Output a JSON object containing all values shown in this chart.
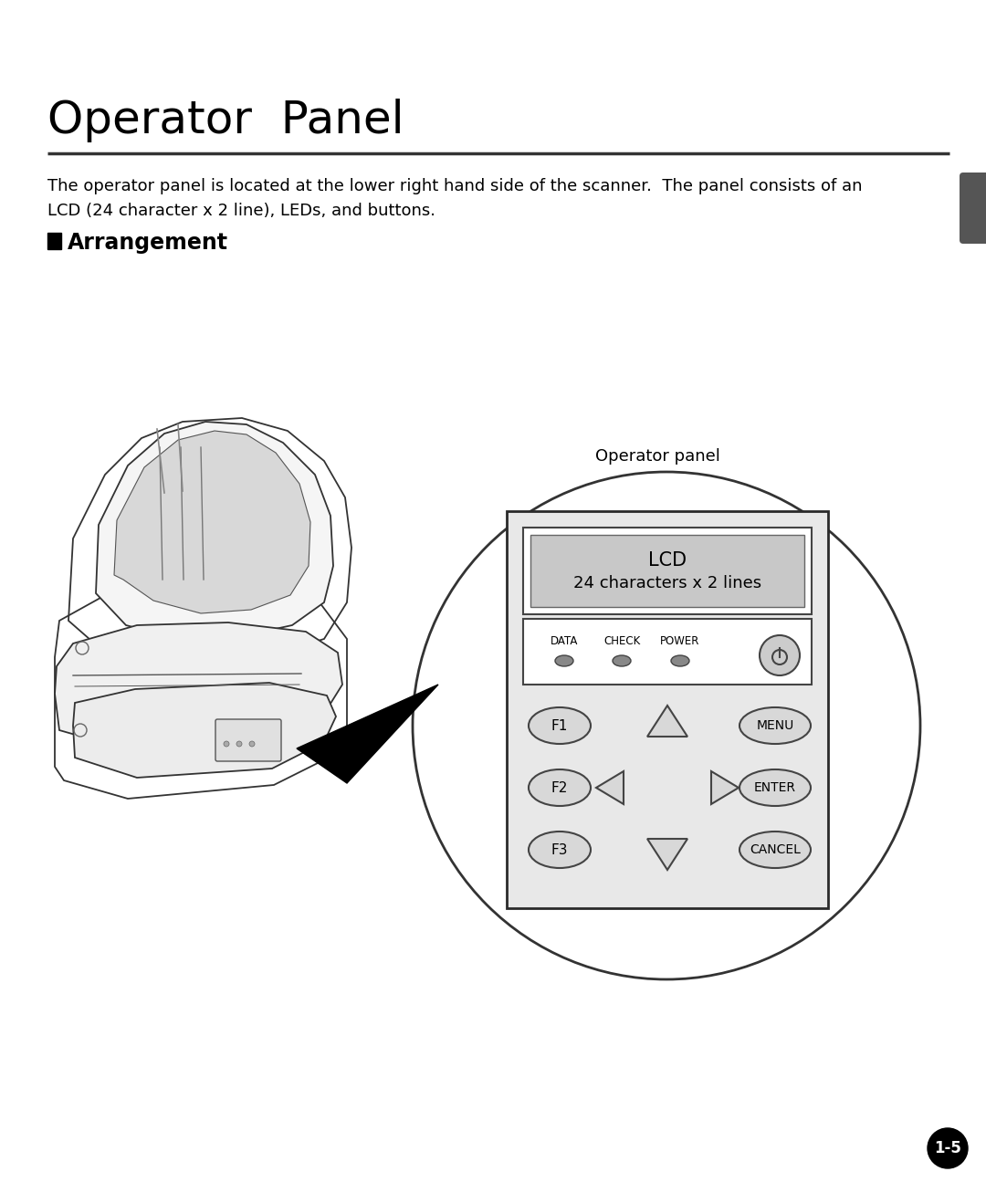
{
  "title": "Operator  Panel",
  "subtitle_line1": "The operator panel is located at the lower right hand side of the scanner.  The panel consists of an",
  "subtitle_line2": "LCD (24 character x 2 line), LEDs, and buttons.",
  "section_title": "Arrangement",
  "operator_panel_label": "Operator panel",
  "lcd_line1": "LCD",
  "lcd_line2": "24 characters x 2 lines",
  "led_labels": [
    "DATA",
    "CHECK",
    "POWER"
  ],
  "button_labels_left": [
    "F1",
    "F2",
    "F3"
  ],
  "button_labels_right": [
    "MENU",
    "ENTER",
    "CANCEL"
  ],
  "page_number": "1-5",
  "bg_color": "#ffffff",
  "text_color": "#000000",
  "panel_bg": "#e0e0e0",
  "lcd_bg": "#c8c8c8",
  "tab_color": "#555555",
  "title_fontsize": 36,
  "body_fontsize": 13,
  "section_fontsize": 17
}
